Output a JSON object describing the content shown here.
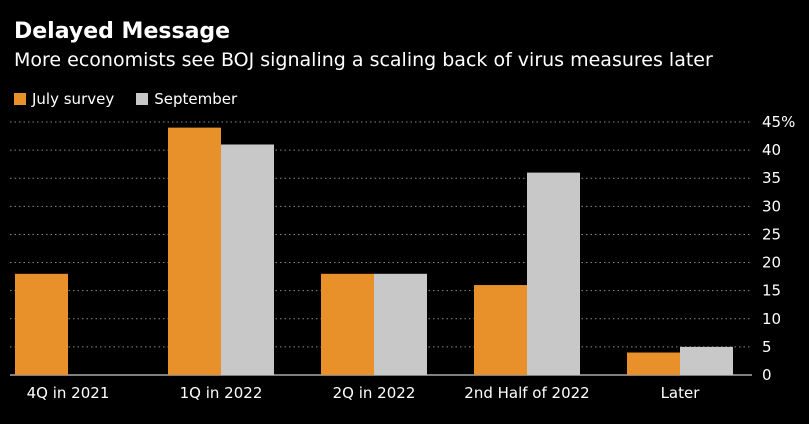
{
  "chart_data": {
    "type": "bar",
    "title": "Delayed Message",
    "subtitle": "More economists see BOJ signaling a scaling back of virus measures later",
    "categories": [
      "4Q in 2021",
      "1Q in 2022",
      "2Q in 2022",
      "2nd Half of 2022",
      "Later"
    ],
    "series": [
      {
        "name": "July survey",
        "color": "#e8902a",
        "values": [
          18,
          44,
          18,
          16,
          4
        ]
      },
      {
        "name": "September",
        "color": "#c8c8c8",
        "values": [
          0,
          41,
          18,
          36,
          5
        ]
      }
    ],
    "ylim": [
      0,
      45
    ],
    "yticks": [
      {
        "value": 45,
        "label": "45%"
      },
      {
        "value": 40,
        "label": "40"
      },
      {
        "value": 35,
        "label": "35"
      },
      {
        "value": 30,
        "label": "30"
      },
      {
        "value": 25,
        "label": "25"
      },
      {
        "value": 20,
        "label": "20"
      },
      {
        "value": 15,
        "label": "15"
      },
      {
        "value": 10,
        "label": "10"
      },
      {
        "value": 5,
        "label": "5"
      },
      {
        "value": 0,
        "label": "0"
      }
    ],
    "xlabel": "",
    "ylabel": "",
    "grid": true,
    "legend": "top-left",
    "y_axis_side": "right"
  }
}
